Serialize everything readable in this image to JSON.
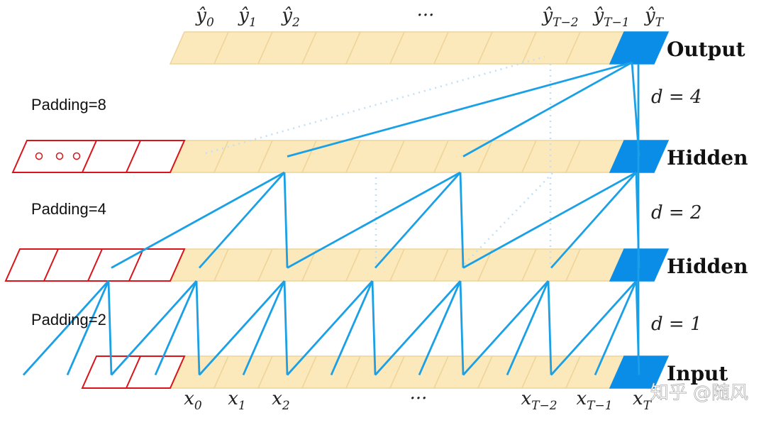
{
  "top_labels": [
    {
      "text": "ŷ",
      "sub": "0"
    },
    {
      "text": "ŷ",
      "sub": "1"
    },
    {
      "text": "ŷ",
      "sub": "2"
    },
    {
      "text": "···"
    },
    {
      "text": "ŷ",
      "sub": "T−2"
    },
    {
      "text": "ŷ",
      "sub": "T−1"
    },
    {
      "text": "ŷ",
      "sub": "T"
    }
  ],
  "bottom_labels": [
    {
      "text": "x",
      "sub": "0"
    },
    {
      "text": "x",
      "sub": "1"
    },
    {
      "text": "x",
      "sub": "2"
    },
    {
      "text": "···"
    },
    {
      "text": "x",
      "sub": "T−2"
    },
    {
      "text": "x",
      "sub": "T−1"
    },
    {
      "text": "x",
      "sub": "T"
    }
  ],
  "layers": [
    "Output",
    "Hidden",
    "Hidden",
    "Input"
  ],
  "dilations": [
    "d = 4",
    "d = 2",
    "d = 1"
  ],
  "paddings": [
    "Padding=8",
    "Padding=4",
    "Padding=2"
  ],
  "watermark": "知乎 @随风"
}
